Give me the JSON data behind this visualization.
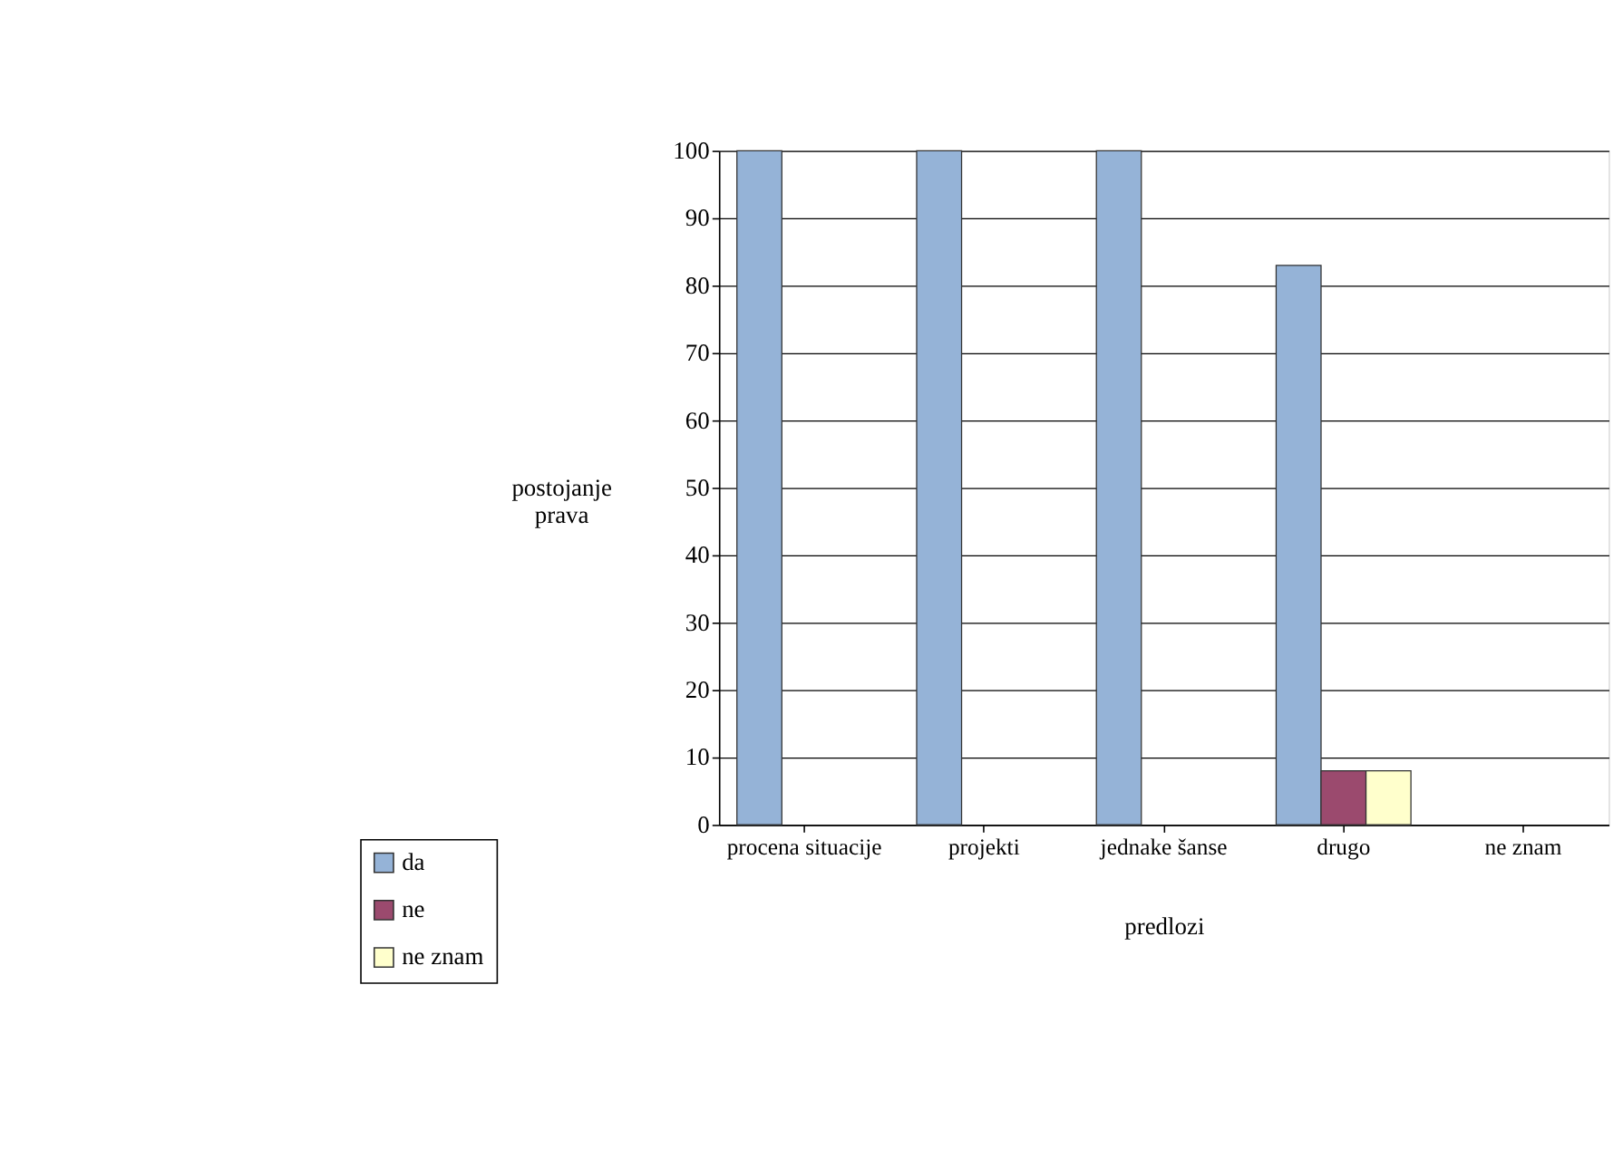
{
  "chart_data": {
    "type": "bar",
    "xlabel": "predlozi",
    "ylabel": "postojanje prava",
    "categories": [
      "procena situacije",
      "projekti",
      "jednake šanse",
      "drugo",
      "ne znam"
    ],
    "series": [
      {
        "name": "da",
        "color": "#95b3d7",
        "values": [
          100,
          100,
          100,
          83,
          0
        ]
      },
      {
        "name": "ne",
        "color": "#9b4a6e",
        "values": [
          0,
          0,
          0,
          8,
          0
        ]
      },
      {
        "name": "ne znam",
        "color": "#ffffcc",
        "values": [
          0,
          0,
          0,
          8,
          0
        ]
      }
    ],
    "ylim": [
      0,
      100
    ],
    "yticks": [
      0,
      10,
      20,
      30,
      40,
      50,
      60,
      70,
      80,
      90,
      100
    ],
    "grid": "y",
    "legend": "bottom left"
  }
}
